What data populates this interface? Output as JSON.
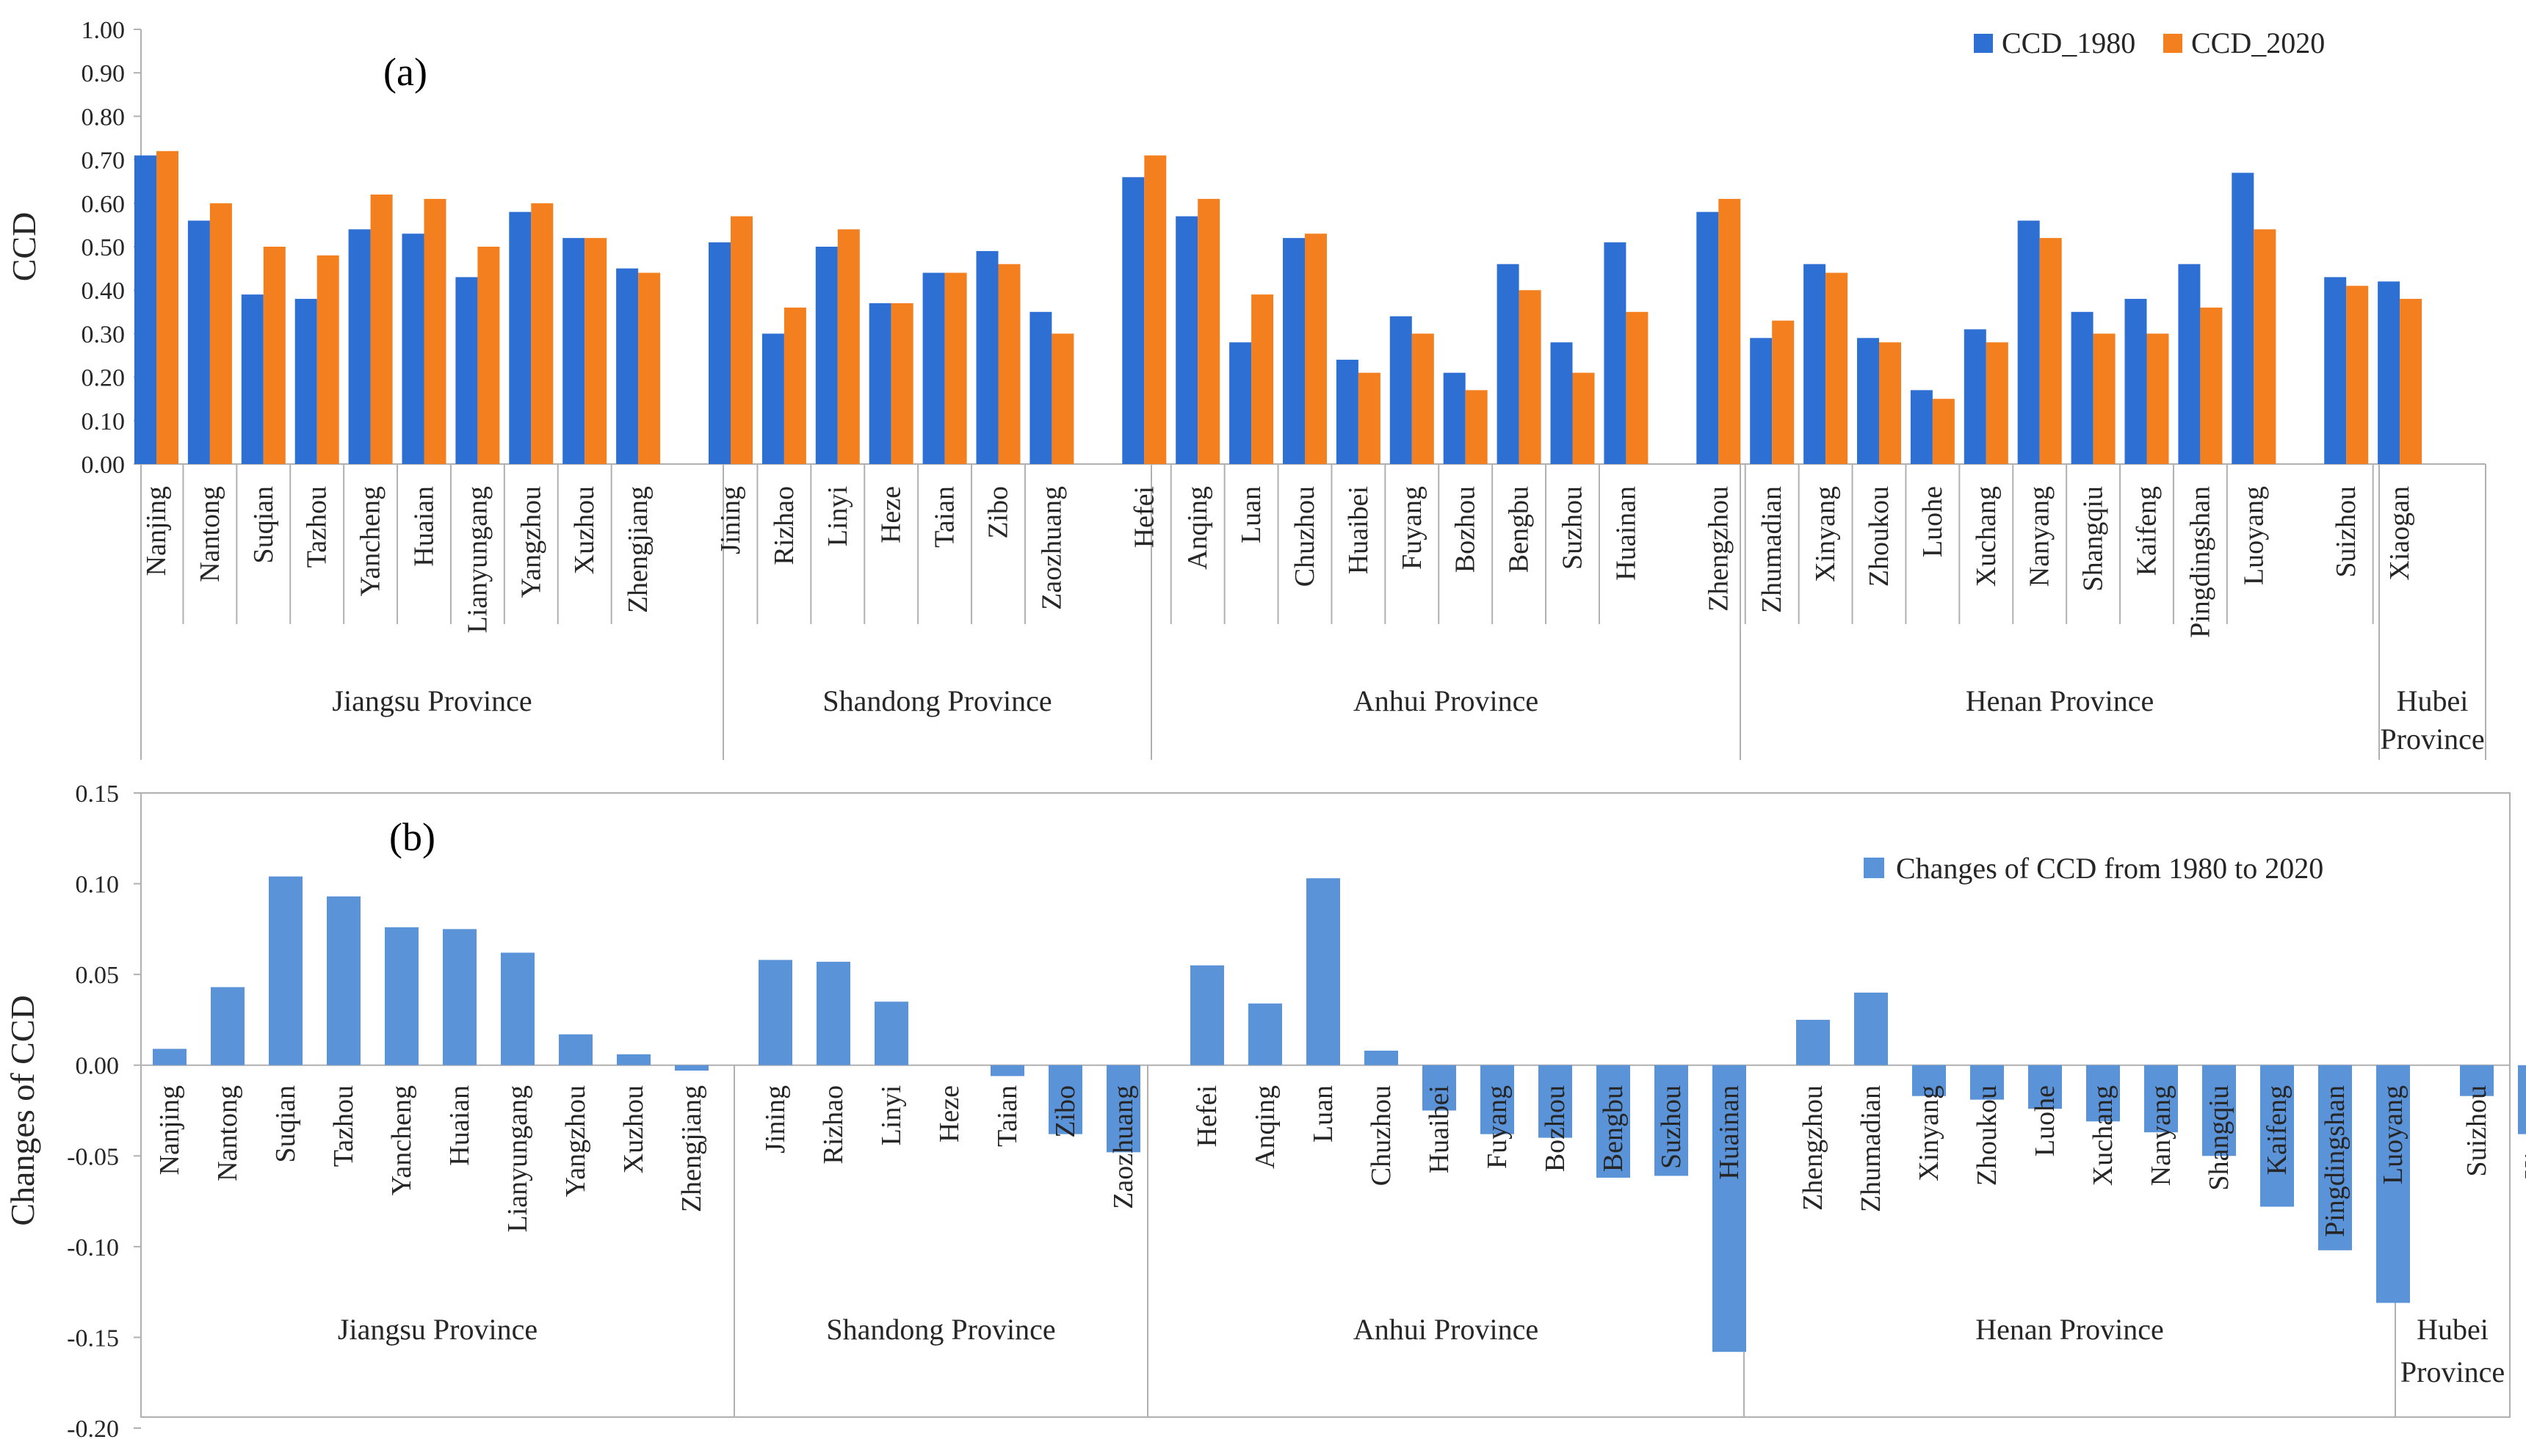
{
  "colors": {
    "ccd_1980": "#2e6fd4",
    "ccd_2020": "#f47f1f",
    "change": "#5b93d8",
    "axis": "#b0b0b0",
    "text": "#262626"
  },
  "chart_data": [
    {
      "type": "bar",
      "panel": "(a)",
      "ylabel": "CCD",
      "ylim": [
        0,
        1
      ],
      "yticks": [
        "0.00",
        "0.10",
        "0.20",
        "0.30",
        "0.40",
        "0.50",
        "0.60",
        "0.70",
        "0.80",
        "0.90",
        "1.00"
      ],
      "legend_position": "top-right",
      "groups": [
        {
          "name": "Jiangsu Province",
          "cities": [
            "Nanjing",
            "Nantong",
            "Suqian",
            "Tazhou",
            "Yancheng",
            "Huaian",
            "Lianyungang",
            "Yangzhou",
            "Xuzhou",
            "Zhengjiang"
          ]
        },
        {
          "name": "Shandong Province",
          "cities": [
            "Jining",
            "Rizhao",
            "Linyi",
            "Heze",
            "Taian",
            "Zibo",
            "Zaozhuang"
          ]
        },
        {
          "name": "Anhui Province",
          "cities": [
            "Hefei",
            "Anqing",
            "Luan",
            "Chuzhou",
            "Huaibei",
            "Fuyang",
            "Bozhou",
            "Bengbu",
            "Suzhou",
            "Huainan"
          ]
        },
        {
          "name": "Henan Province",
          "cities": [
            "Zhengzhou",
            "Zhumadian",
            "Xinyang",
            "Zhoukou",
            "Luohe",
            "Xuchang",
            "Nanyang",
            "Shangqiu",
            "Kaifeng",
            "Pingdingshan",
            "Luoyang"
          ]
        },
        {
          "name": "Hubei Province",
          "cities": [
            "Suizhou",
            "Xiaogan"
          ]
        }
      ],
      "series": [
        {
          "name": "CCD_1980",
          "values": [
            0.71,
            0.56,
            0.39,
            0.38,
            0.54,
            0.53,
            0.43,
            0.58,
            0.52,
            0.45,
            0.51,
            0.3,
            0.5,
            0.37,
            0.44,
            0.49,
            0.35,
            0.66,
            0.57,
            0.28,
            0.52,
            0.24,
            0.34,
            0.21,
            0.46,
            0.28,
            0.51,
            0.58,
            0.29,
            0.46,
            0.29,
            0.17,
            0.31,
            0.56,
            0.35,
            0.38,
            0.46,
            0.67,
            0.43,
            0.42
          ]
        },
        {
          "name": "CCD_2020",
          "values": [
            0.72,
            0.6,
            0.5,
            0.48,
            0.62,
            0.61,
            0.5,
            0.6,
            0.52,
            0.44,
            0.57,
            0.36,
            0.54,
            0.37,
            0.44,
            0.46,
            0.3,
            0.71,
            0.61,
            0.39,
            0.53,
            0.21,
            0.3,
            0.17,
            0.4,
            0.21,
            0.35,
            0.61,
            0.33,
            0.44,
            0.28,
            0.15,
            0.28,
            0.52,
            0.3,
            0.3,
            0.36,
            0.54,
            0.41,
            0.38
          ]
        }
      ]
    },
    {
      "type": "bar",
      "panel": "(b)",
      "ylabel": "Changes of CCD",
      "ylim": [
        -0.2,
        0.15
      ],
      "yticks": [
        "-0.20",
        "-0.15",
        "-0.10",
        "-0.05",
        "0.00",
        "0.05",
        "0.10",
        "0.15"
      ],
      "legend_position": "top-right",
      "groups": [
        {
          "name": "Jiangsu Province",
          "cities": [
            "Nanjing",
            "Nantong",
            "Suqian",
            "Tazhou",
            "Yancheng",
            "Huaian",
            "Lianyungang",
            "Yangzhou",
            "Xuzhou",
            "Zhengjiang"
          ]
        },
        {
          "name": "Shandong Province",
          "cities": [
            "Jining",
            "Rizhao",
            "Linyi",
            "Heze",
            "Taian",
            "Zibo",
            "Zaozhuang"
          ]
        },
        {
          "name": "Anhui Province",
          "cities": [
            "Hefei",
            "Anqing",
            "Luan",
            "Chuzhou",
            "Huaibei",
            "Fuyang",
            "Bozhou",
            "Bengbu",
            "Suzhou",
            "Huainan"
          ]
        },
        {
          "name": "Henan Province",
          "cities": [
            "Zhengzhou",
            "Zhumadian",
            "Xinyang",
            "Zhoukou",
            "Luohe",
            "Xuchang",
            "Nanyang",
            "Shangqiu",
            "Kaifeng",
            "Pingdingshan",
            "Luoyang"
          ]
        },
        {
          "name": "Hubei Province",
          "cities": [
            "Suizhou",
            "Xiaogan"
          ]
        }
      ],
      "series": [
        {
          "name": "Changes of CCD from 1980 to 2020",
          "values": [
            0.009,
            0.043,
            0.104,
            0.093,
            0.076,
            0.075,
            0.062,
            0.017,
            0.006,
            -0.003,
            0.058,
            0.057,
            0.035,
            0.0,
            -0.006,
            -0.038,
            -0.048,
            0.055,
            0.034,
            0.103,
            0.008,
            -0.025,
            -0.038,
            -0.04,
            -0.062,
            -0.061,
            -0.158,
            0.025,
            0.04,
            -0.017,
            -0.019,
            -0.024,
            -0.031,
            -0.037,
            -0.05,
            -0.078,
            -0.102,
            -0.131,
            -0.017,
            -0.038
          ]
        }
      ]
    }
  ]
}
